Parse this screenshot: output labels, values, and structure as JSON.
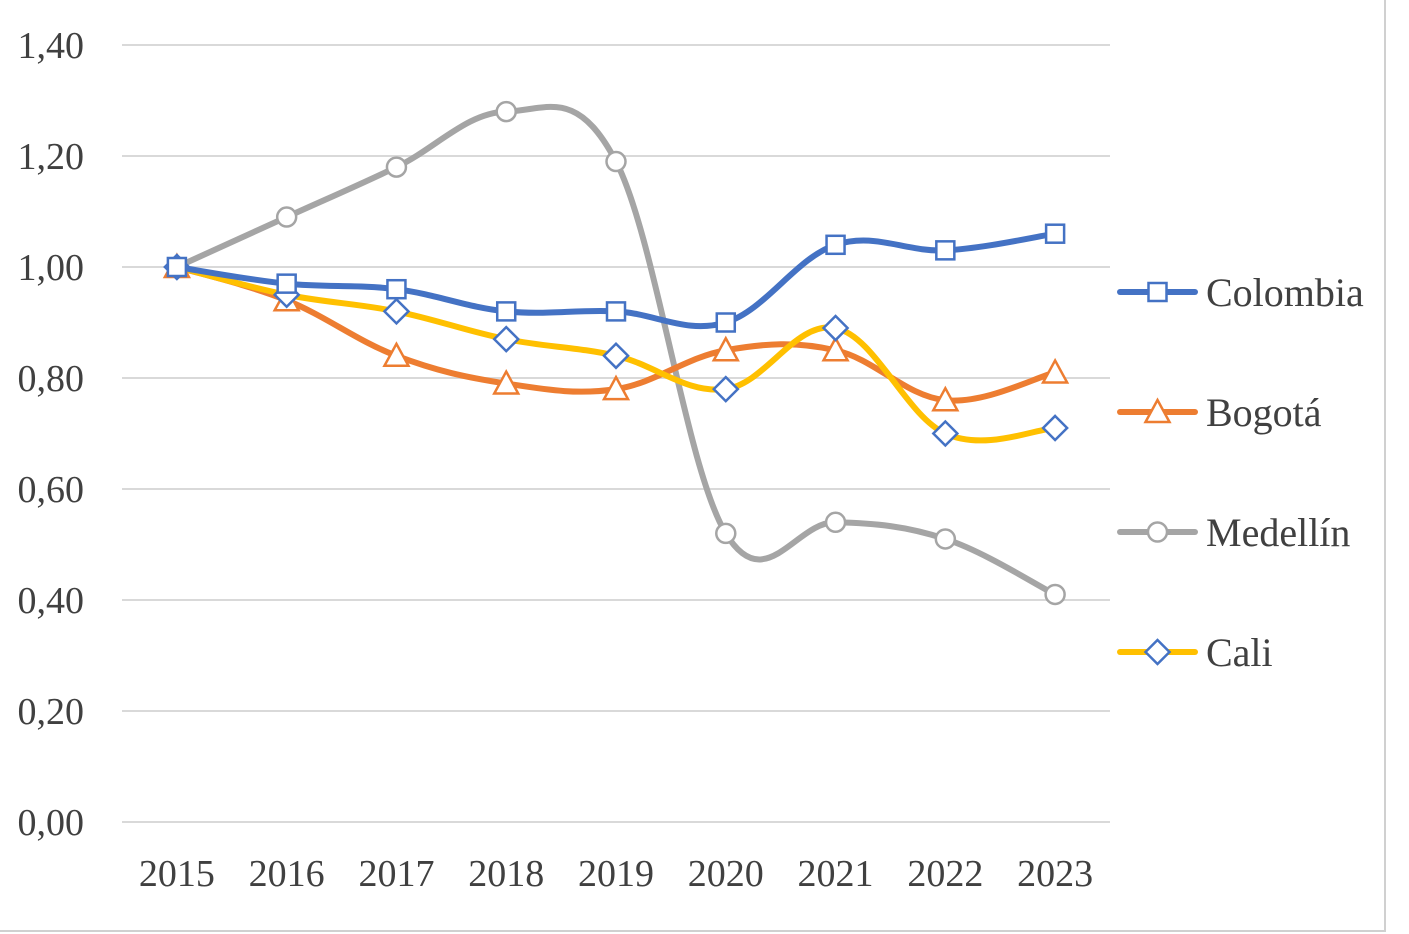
{
  "chart_data": {
    "type": "line",
    "title": "",
    "xlabel": "",
    "ylabel": "",
    "categories": [
      "2015",
      "2016",
      "2017",
      "2018",
      "2019",
      "2020",
      "2021",
      "2022",
      "2023"
    ],
    "ylim": [
      0,
      1.4
    ],
    "yticks": [
      0,
      0.2,
      0.4,
      0.6,
      0.8,
      1.0,
      1.2,
      1.4
    ],
    "ytick_labels": [
      "0,00",
      "0,20",
      "0,40",
      "0,60",
      "0,80",
      "1,00",
      "1,20",
      "1,40"
    ],
    "grid": "horizontal",
    "legend_position": "right",
    "smooth": true,
    "series": [
      {
        "name": "Colombia",
        "color": "#4472C4",
        "marker": "square",
        "values": [
          1.0,
          0.97,
          0.96,
          0.92,
          0.92,
          0.9,
          1.04,
          1.03,
          1.06
        ]
      },
      {
        "name": "Bogotá",
        "color": "#ED7D31",
        "marker": "triangle",
        "values": [
          1.0,
          0.94,
          0.84,
          0.79,
          0.78,
          0.85,
          0.85,
          0.76,
          0.81
        ]
      },
      {
        "name": "Medellín",
        "color": "#A5A5A5",
        "marker": "circle",
        "values": [
          1.0,
          1.09,
          1.18,
          1.28,
          1.19,
          0.52,
          0.54,
          0.51,
          0.41
        ]
      },
      {
        "name": "Cali",
        "color": "#FFC000",
        "marker": "diamond",
        "marker_color": "#4472C4",
        "values": [
          1.0,
          0.95,
          0.92,
          0.87,
          0.84,
          0.78,
          0.89,
          0.7,
          0.71
        ]
      }
    ]
  }
}
